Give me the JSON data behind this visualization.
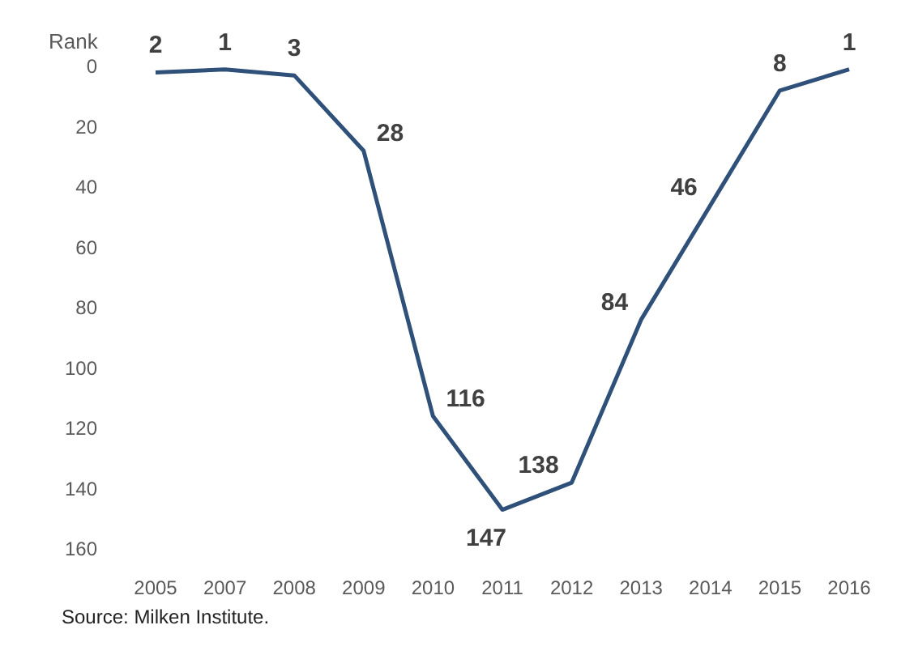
{
  "chart_data": {
    "type": "line",
    "ylabel": "Rank",
    "categories": [
      "2005",
      "2007",
      "2008",
      "2009",
      "2010",
      "2011",
      "2012",
      "2013",
      "2014",
      "2015",
      "2016"
    ],
    "series": [
      {
        "color": "#2f5079",
        "values": [
          2,
          1,
          3,
          28,
          116,
          147,
          138,
          84,
          46,
          8,
          1
        ]
      }
    ],
    "ylim": [
      160,
      0
    ],
    "yticks": [
      0,
      20,
      40,
      60,
      80,
      100,
      120,
      140,
      160
    ],
    "grid": false,
    "data_labels": true,
    "marker": "none",
    "line_style": "solid",
    "annotations": [
      "Source: Milken Institute."
    ]
  }
}
